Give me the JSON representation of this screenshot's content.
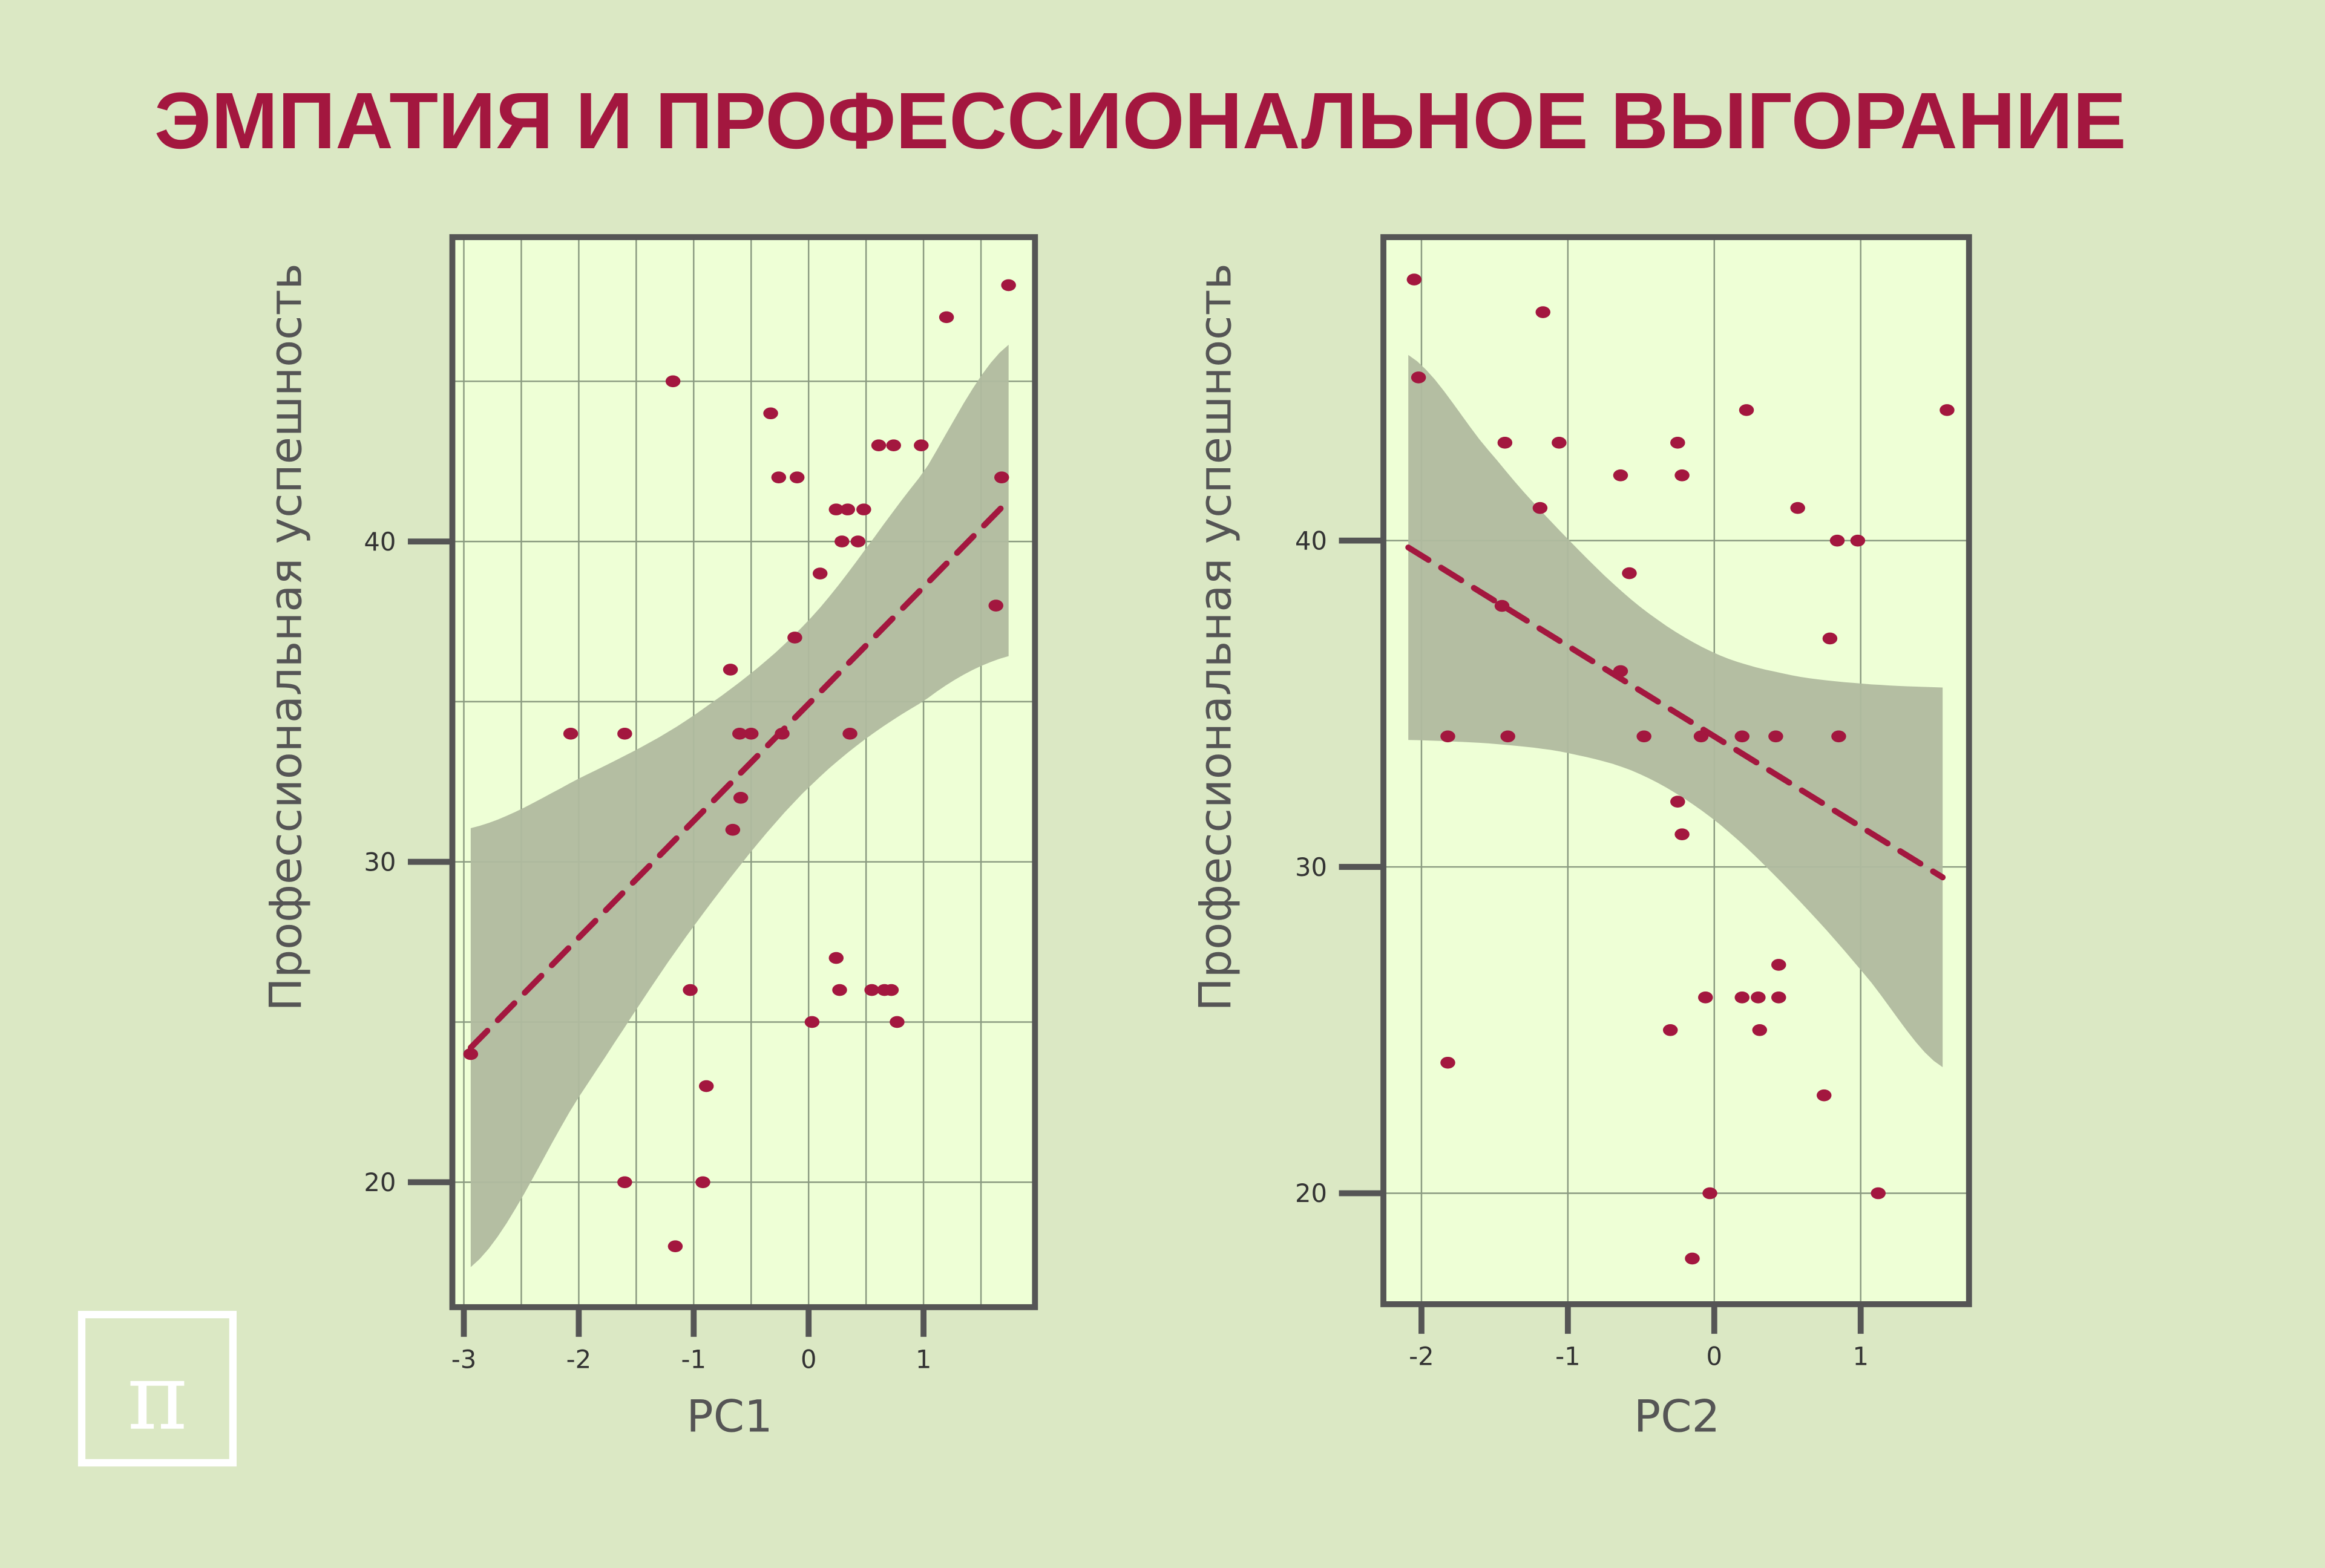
{
  "title": "ЭМПАТИЯ И ПРОФЕССИОНАЛЬНОЕ ВЫГОРАНИЕ",
  "logo": "π",
  "colors": {
    "background": "#dbe8c4",
    "panel": "#eeffd6",
    "accent": "#a3173f",
    "band": "#b0bb9f",
    "axis": "#555555"
  },
  "chart_data": [
    {
      "type": "scatter",
      "xlabel": "PC1",
      "ylabel": "Профессиональная успешность",
      "xlim": [
        -3.1,
        1.97
      ],
      "ylim": [
        16.1,
        49.5
      ],
      "xticks": [
        -3,
        -2,
        -1,
        0,
        1
      ],
      "xtick_labels": [
        "-3",
        "-2",
        "-1",
        "0",
        "1"
      ],
      "yticks": [
        20,
        30,
        40
      ],
      "ytick_labels": [
        "20",
        "30",
        "40"
      ],
      "grid": true,
      "points": [
        [
          -2.94,
          24
        ],
        [
          -2.07,
          34
        ],
        [
          -1.6,
          34
        ],
        [
          -1.6,
          20
        ],
        [
          -1.18,
          45
        ],
        [
          -1.16,
          18
        ],
        [
          -1.03,
          26
        ],
        [
          -0.89,
          23
        ],
        [
          -0.92,
          20
        ],
        [
          -0.68,
          36
        ],
        [
          -0.66,
          31
        ],
        [
          -0.59,
          32
        ],
        [
          -0.6,
          34
        ],
        [
          -0.5,
          34
        ],
        [
          -0.33,
          44
        ],
        [
          -0.26,
          42
        ],
        [
          -0.1,
          42
        ],
        [
          -0.23,
          34
        ],
        [
          -0.12,
          37
        ],
        [
          0.03,
          25
        ],
        [
          0.1,
          39
        ],
        [
          0.24,
          27
        ],
        [
          0.27,
          26
        ],
        [
          0.24,
          41
        ],
        [
          0.34,
          41
        ],
        [
          0.29,
          40
        ],
        [
          0.43,
          40
        ],
        [
          0.36,
          34
        ],
        [
          0.48,
          41
        ],
        [
          0.55,
          26
        ],
        [
          0.66,
          26
        ],
        [
          0.72,
          26
        ],
        [
          0.61,
          43
        ],
        [
          0.74,
          43
        ],
        [
          0.77,
          25
        ],
        [
          0.98,
          43
        ],
        [
          1.2,
          47
        ],
        [
          1.63,
          38
        ],
        [
          1.68,
          42
        ],
        [
          1.74,
          48
        ]
      ],
      "fit_line": [
        [
          -2.94,
          24.2
        ],
        [
          1.74,
          41.28
        ]
      ],
      "confidence_band": {
        "x": [
          -2.94,
          -2,
          -1,
          0,
          1,
          1.74
        ],
        "lower": [
          17.35,
          22.66,
          27.99,
          32.32,
          35.01,
          36.42
        ],
        "upper": [
          31.05,
          32.6,
          34.57,
          37.54,
          42.15,
          46.14
        ]
      }
    },
    {
      "type": "scatter",
      "xlabel": "PC2",
      "ylabel": "Профессиональная успешность",
      "xlim": [
        -2.26,
        1.74
      ],
      "ylim": [
        16.6,
        49.3
      ],
      "xticks": [
        -2,
        -1,
        0,
        1
      ],
      "xtick_labels": [
        "-2",
        "-1",
        "0",
        "1"
      ],
      "yticks": [
        20,
        30,
        40
      ],
      "ytick_labels": [
        "20",
        "30",
        "40"
      ],
      "grid": true,
      "points": [
        [
          -2.05,
          48
        ],
        [
          -2.02,
          45
        ],
        [
          -1.82,
          34
        ],
        [
          -1.82,
          24
        ],
        [
          -1.45,
          38
        ],
        [
          -1.43,
          43
        ],
        [
          -1.41,
          34
        ],
        [
          -1.17,
          47
        ],
        [
          -1.19,
          41
        ],
        [
          -1.06,
          43
        ],
        [
          -0.64,
          42
        ],
        [
          -0.64,
          36
        ],
        [
          -0.58,
          39
        ],
        [
          -0.48,
          34
        ],
        [
          -0.3,
          25
        ],
        [
          -0.25,
          32
        ],
        [
          -0.25,
          43
        ],
        [
          -0.22,
          42
        ],
        [
          -0.22,
          31
        ],
        [
          -0.15,
          18
        ],
        [
          -0.09,
          34
        ],
        [
          -0.06,
          26
        ],
        [
          -0.03,
          20
        ],
        [
          0.19,
          26
        ],
        [
          0.19,
          34
        ],
        [
          0.22,
          44
        ],
        [
          0.3,
          26
        ],
        [
          0.31,
          25
        ],
        [
          0.42,
          34
        ],
        [
          0.44,
          27
        ],
        [
          0.44,
          26
        ],
        [
          0.57,
          41
        ],
        [
          0.75,
          23
        ],
        [
          0.79,
          37
        ],
        [
          0.84,
          40
        ],
        [
          0.85,
          34
        ],
        [
          0.98,
          40
        ],
        [
          1.12,
          20
        ],
        [
          1.59,
          44
        ]
      ],
      "fit_line": [
        [
          -2.09,
          39.79
        ],
        [
          1.56,
          29.68
        ]
      ],
      "confidence_band": {
        "x": [
          -2.09,
          -1.5,
          -1,
          -0.5,
          0,
          0.5,
          1,
          1.56
        ],
        "lower": [
          33.89,
          33.77,
          33.49,
          32.83,
          31.44,
          29.34,
          26.84,
          23.86
        ],
        "upper": [
          45.69,
          42.55,
          40.05,
          37.95,
          36.56,
          35.9,
          35.62,
          35.5
        ]
      }
    }
  ]
}
